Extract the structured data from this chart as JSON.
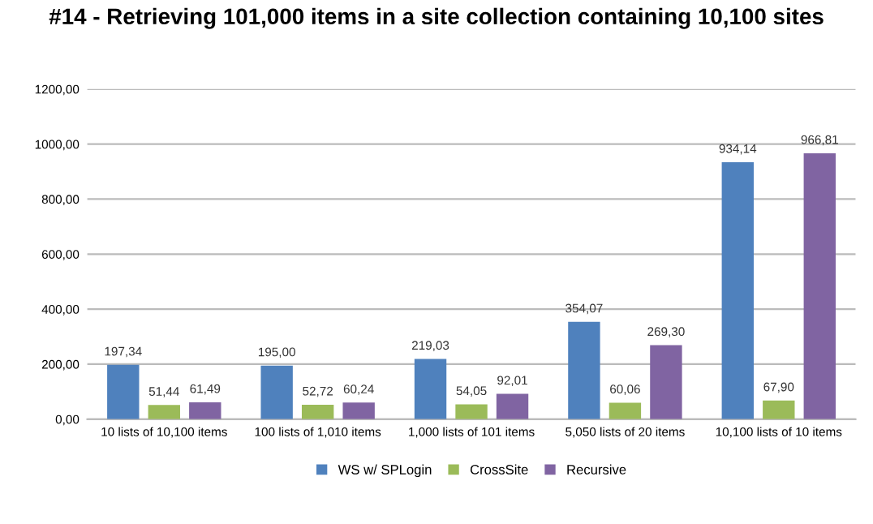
{
  "chart_data": {
    "type": "bar",
    "title": "#14 - Retrieving 101,000 items in a site collection containing 10,100 sites",
    "categories": [
      "10 lists of 10,100 items",
      "100 lists of 1,010 items",
      "1,000 lists of 101 items",
      "5,050 lists of 20 items",
      "10,100 lists of 10 items"
    ],
    "series": [
      {
        "name": "WS w/ SPLogin",
        "color": "#4f81bd",
        "values": [
          197.34,
          195.0,
          219.03,
          354.07,
          934.14
        ],
        "value_labels": [
          "197,34",
          "195,00",
          "219,03",
          "354,07",
          "934,14"
        ]
      },
      {
        "name": "CrossSite",
        "color": "#9bbb59",
        "values": [
          51.44,
          52.72,
          54.05,
          60.06,
          67.9
        ],
        "value_labels": [
          "51,44",
          "52,72",
          "54,05",
          "60,06",
          "67,90"
        ]
      },
      {
        "name": "Recursive",
        "color": "#8064a2",
        "values": [
          61.49,
          60.24,
          92.01,
          269.3,
          966.81
        ],
        "value_labels": [
          "61,49",
          "60,24",
          "92,01",
          "269,30",
          "966,81"
        ]
      }
    ],
    "ylim": [
      0,
      1200
    ],
    "yticks": [
      {
        "value": 0,
        "label": "0,00"
      },
      {
        "value": 200,
        "label": "200,00"
      },
      {
        "value": 400,
        "label": "400,00"
      },
      {
        "value": 600,
        "label": "600,00"
      },
      {
        "value": 800,
        "label": "800,00"
      },
      {
        "value": 1000,
        "label": "1000,00"
      },
      {
        "value": 1200,
        "label": "1200,00"
      }
    ],
    "grid": "y",
    "legend": "bottom"
  }
}
